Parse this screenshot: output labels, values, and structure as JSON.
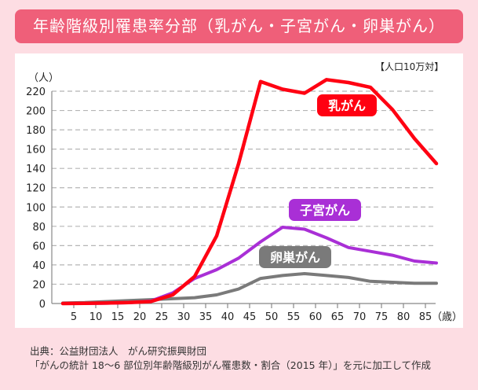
{
  "header": {
    "title": "年齢階級別罹患率分部（乳がん・子宮がん・卵巣がん）"
  },
  "source": {
    "line1": "出典：公益財団法人　がん研究振興財団",
    "line2": "「がんの統計 18～6 部位別年齢階級別がん罹患数・割合（2015 年）」を元に加工して作成"
  },
  "colors": {
    "title_bg": "#ef5f79",
    "background": "#fddde3",
    "breast": "#ff0012",
    "uterine": "#a92fd6",
    "ovarian": "#7a7a7a"
  },
  "chart_data": {
    "type": "line",
    "title": "年齢階級別罹患率分部（乳がん・子宮がん・卵巣がん）",
    "unit_note": "【人口10万対】",
    "ylabel": "（人）",
    "xlabel": "（歳）",
    "ylim": [
      0,
      220
    ],
    "yticks": [
      "0",
      "20",
      "40",
      "60",
      "80",
      "100",
      "120",
      "140",
      "160",
      "180",
      "200",
      "220"
    ],
    "xticks": [
      "5",
      "10",
      "15",
      "20",
      "25",
      "30",
      "35",
      "40",
      "45",
      "50",
      "55",
      "60",
      "65",
      "70",
      "75",
      "80",
      "85"
    ],
    "grid": true,
    "x": [
      2.5,
      7.5,
      12.5,
      17.5,
      22.5,
      27.5,
      32.5,
      37.5,
      42.5,
      47.5,
      52.5,
      57.5,
      62.5,
      67.5,
      72.5,
      77.5,
      82.5,
      87.5
    ],
    "series": [
      {
        "name": "乳がん",
        "key": "breast",
        "values": [
          0,
          0.2,
          0.5,
          1,
          2,
          9,
          28,
          70,
          145,
          230,
          222,
          218,
          232,
          229,
          224,
          201,
          171,
          145
        ]
      },
      {
        "name": "子宮がん",
        "key": "uterine",
        "values": [
          0,
          0.1,
          0.3,
          0.8,
          2.5,
          11,
          26,
          35,
          47,
          64,
          79,
          77,
          68,
          58,
          54,
          50,
          44,
          42
        ]
      },
      {
        "name": "卵巣がん",
        "key": "ovarian",
        "values": [
          0.5,
          1,
          2,
          3,
          4,
          5,
          6,
          9,
          15,
          26,
          29,
          31,
          29,
          27,
          23,
          22,
          21,
          21
        ]
      }
    ]
  }
}
